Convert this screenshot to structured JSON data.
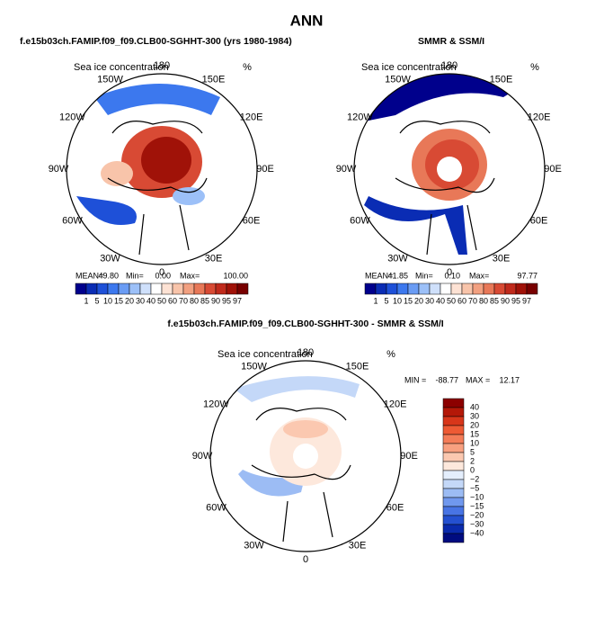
{
  "title": "ANN",
  "panels": [
    {
      "title": "f.e15b03ch.FAMIP.f09_f09.CLB00-SGHHT-300 (yrs 1980-1984)",
      "variable": "Sea ice concentration",
      "units": "%",
      "stats": [
        "MEAN=",
        "49.80",
        "Min=",
        "0.00",
        "Max=",
        "100.00"
      ]
    },
    {
      "title": "SMMR & SSM/I",
      "variable": "Sea ice concentration",
      "units": "%",
      "stats": [
        "MEAN=",
        "41.85",
        "Min=",
        "0.10",
        "Max=",
        "97.77"
      ]
    },
    {
      "title": "f.e15b03ch.FAMIP.f09_f09.CLB00-SGHHT-300 - SMMR & SSM/I",
      "variable": "Sea ice concentration",
      "units": "%",
      "stats": [
        "MIN =",
        "-88.77",
        "MAX =",
        "12.17"
      ]
    }
  ],
  "lon_labels": [
    "180",
    "150E",
    "120E",
    "90E",
    "60E",
    "30E",
    "0",
    "30W",
    "60W",
    "90W",
    "120W",
    "150W"
  ],
  "concentration_colorbar": {
    "labels": [
      "1",
      "5",
      "10",
      "15",
      "20",
      "30",
      "40",
      "50",
      "60",
      "70",
      "80",
      "85",
      "90",
      "95",
      "97"
    ],
    "colors": [
      "#00008c",
      "#0a2cb4",
      "#1e50d8",
      "#3c78ee",
      "#6a9cf4",
      "#9cc0f8",
      "#cfe0fb",
      "#ffffff",
      "#fde2d4",
      "#f8c4aa",
      "#f2a080",
      "#e87858",
      "#d84a34",
      "#c02a1c",
      "#a01208",
      "#780000"
    ]
  },
  "difference_colorbar": {
    "labels": [
      "40",
      "30",
      "20",
      "15",
      "10",
      "5",
      "2",
      "0",
      "−2",
      "−5",
      "−10",
      "−15",
      "−20",
      "−30",
      "−40"
    ],
    "colors": [
      "#8c0000",
      "#b41808",
      "#d8361a",
      "#ee5a34",
      "#f47c58",
      "#f8a080",
      "#fbc8b0",
      "#fde8dc",
      "#e4eefc",
      "#c4d8f8",
      "#9cbcf4",
      "#7098ee",
      "#4874e4",
      "#2450d0",
      "#0a2aac",
      "#000c80"
    ]
  }
}
